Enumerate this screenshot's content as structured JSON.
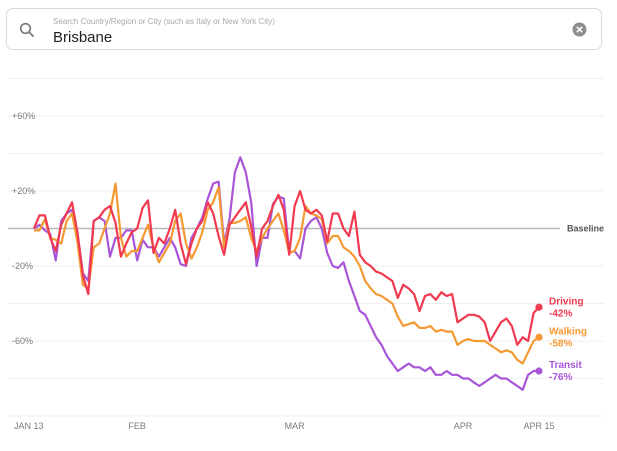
{
  "search": {
    "placeholder": "Search Country/Region or City (such as Italy or New York City)",
    "value": "Brisbane",
    "search_icon": "search-icon",
    "clear_icon": "clear-icon"
  },
  "chart_data": {
    "type": "line",
    "ylim": [
      -100,
      60
    ],
    "yticks": [
      {
        "v": 60,
        "label": "+60%"
      },
      {
        "v": 20,
        "label": "+20%"
      },
      {
        "v": -20,
        "label": "-20%"
      },
      {
        "v": -60,
        "label": "-60%"
      }
    ],
    "baseline_label": "Baseline",
    "xticks": [
      {
        "day": 0,
        "label": "JAN 13"
      },
      {
        "day": 19,
        "label": "FEB"
      },
      {
        "day": 48,
        "label": "MAR"
      },
      {
        "day": 79,
        "label": "APR"
      },
      {
        "day": 93,
        "label": "APR 15"
      }
    ],
    "grid": true,
    "series": [
      {
        "name": "Driving",
        "end_label": "-42%",
        "color": "#f1394f",
        "values": [
          0,
          7,
          7,
          -5,
          -12,
          2,
          8,
          14,
          -2,
          -25,
          -35,
          4,
          6,
          10,
          12,
          3,
          -15,
          -8,
          -2,
          0,
          11,
          15,
          -13,
          -5,
          -8,
          0,
          10,
          -8,
          -19,
          -8,
          0,
          4,
          14,
          8,
          -4,
          -14,
          2,
          6,
          10,
          14,
          1,
          -15,
          0,
          4,
          12,
          18,
          10,
          -14,
          12,
          20,
          10,
          8,
          10,
          7,
          -7,
          8,
          8,
          0,
          -4,
          9,
          -14,
          -18,
          -20,
          -23,
          -24,
          -26,
          -28,
          -37,
          -30,
          -32,
          -35,
          -44,
          -36,
          -35,
          -38,
          -34,
          -36,
          -35,
          -50,
          -48,
          -46,
          -46,
          -47,
          -50,
          -60,
          -55,
          -50,
          -48,
          -52,
          -62,
          -58,
          -60,
          -45,
          -42
        ]
      },
      {
        "name": "Walking",
        "end_label": "-58%",
        "color": "#f59a32",
        "values": [
          -1,
          -1,
          5,
          -5,
          -6,
          -8,
          4,
          8,
          -7,
          -30,
          -32,
          -10,
          -8,
          0,
          8,
          24,
          -5,
          -15,
          -12,
          -12,
          -5,
          2,
          -10,
          -18,
          -13,
          -8,
          4,
          8,
          -8,
          -16,
          -10,
          -2,
          10,
          14,
          22,
          -10,
          3,
          3,
          4,
          6,
          -5,
          -12,
          -5,
          0,
          4,
          8,
          -1,
          -13,
          -12,
          -5,
          12,
          8,
          7,
          5,
          -8,
          -4,
          -4,
          -10,
          -12,
          -15,
          -20,
          -28,
          -32,
          -35,
          -36,
          -38,
          -40,
          -47,
          -52,
          -51,
          -50,
          -53,
          -53,
          -52,
          -55,
          -54,
          -55,
          -55,
          -62,
          -60,
          -59,
          -60,
          -60,
          -60,
          -62,
          -64,
          -66,
          -65,
          -66,
          -70,
          -72,
          -66,
          -60,
          -58
        ]
      },
      {
        "name": "Transit",
        "end_label": "-76%",
        "color": "#a855d8",
        "values": [
          0,
          2,
          -1,
          -3,
          -17,
          4,
          8,
          10,
          -2,
          -24,
          -28,
          4,
          6,
          4,
          -15,
          -5,
          -5,
          -1,
          -1,
          -17,
          -6,
          -10,
          -10,
          -15,
          -10,
          -5,
          -10,
          -19,
          -20,
          -5,
          0,
          6,
          16,
          24,
          25,
          -8,
          5,
          30,
          38,
          30,
          14,
          -20,
          -5,
          -5,
          13,
          17,
          16,
          -13,
          -12,
          -16,
          0,
          4,
          6,
          0,
          -13,
          -20,
          -21,
          -18,
          -28,
          -36,
          -44,
          -46,
          -52,
          -58,
          -62,
          -68,
          -72,
          -76,
          -74,
          -72,
          -74,
          -74,
          -76,
          -74,
          -78,
          -78,
          -76,
          -78,
          -78,
          -80,
          -80,
          -82,
          -84,
          -82,
          -80,
          -78,
          -80,
          -80,
          -82,
          -84,
          -86,
          -78,
          -76,
          -76
        ]
      }
    ]
  }
}
